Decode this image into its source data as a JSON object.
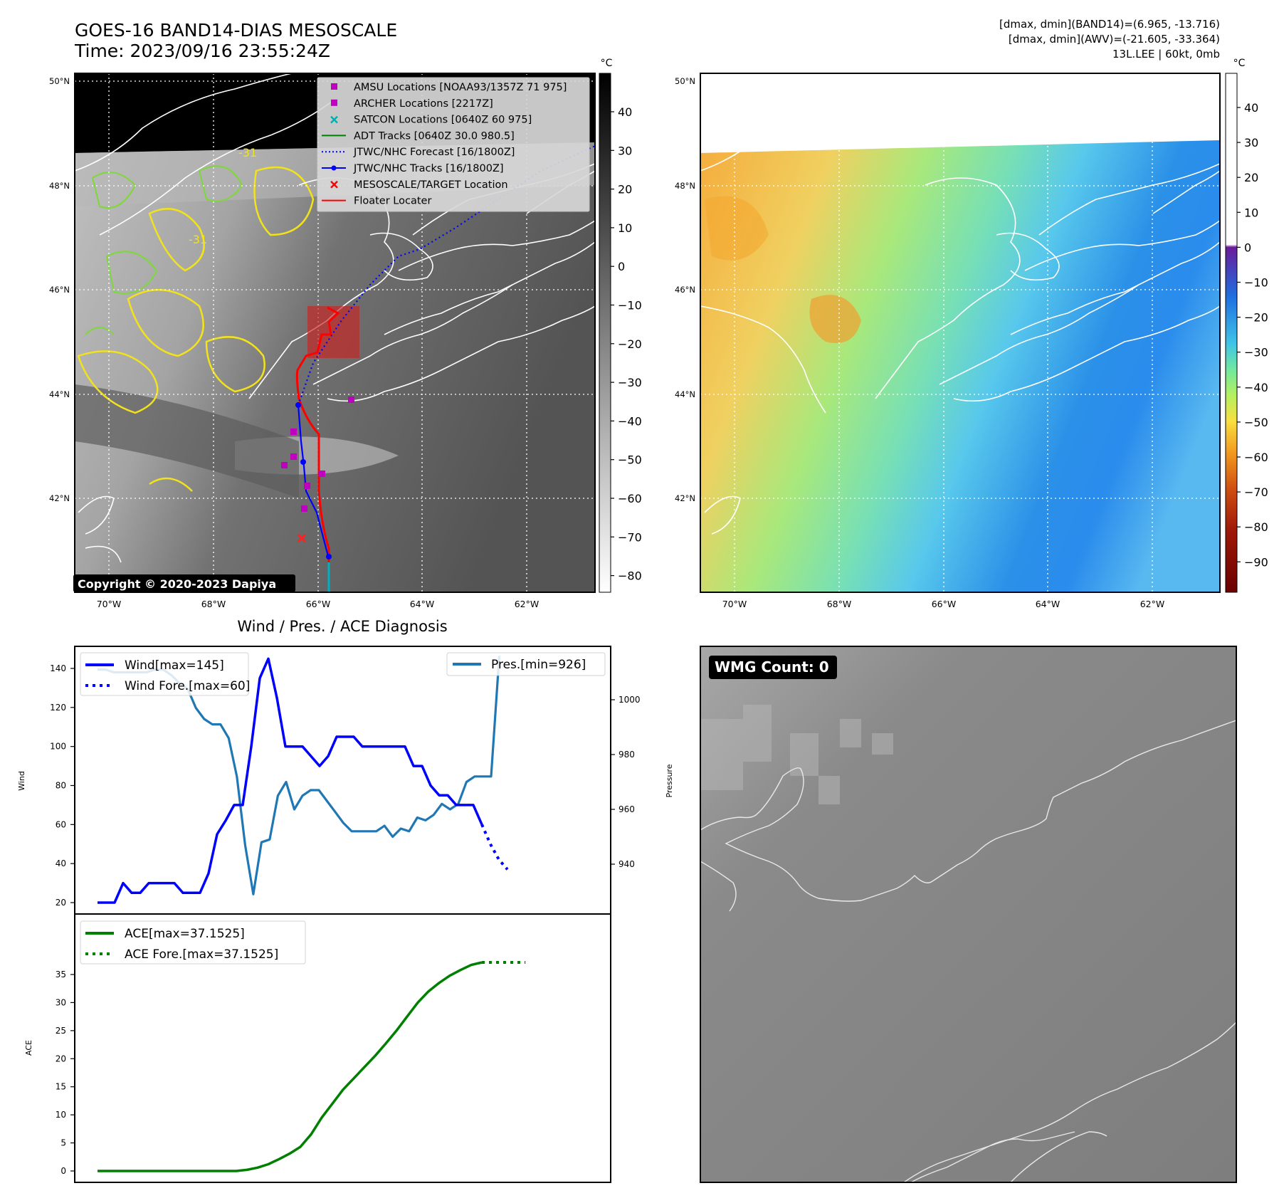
{
  "header": {
    "title": "GOES-16 BAND14-DIAS MESOSCALE",
    "time": "Time: 2023/09/16 23:55:24Z",
    "info_line1": "[dmax, dmin](BAND14)=(6.965, -13.716)",
    "info_line2": "[dmax, dmin](AWV)=(-21.605, -33.364)",
    "info_line3": "13L.LEE | 60kt, 0mb"
  },
  "maps": {
    "lon_ticks": [
      "70°W",
      "68°W",
      "66°W",
      "64°W",
      "62°W"
    ],
    "lat_ticks": [
      "50°N",
      "48°N",
      "46°N",
      "44°N",
      "42°N"
    ],
    "contour_label": "-31",
    "copyright": "Copyright © 2020-2023 Dapiya"
  },
  "legend": {
    "items": [
      {
        "label": "AMSU Locations [NOAA93/1357Z 71 975]",
        "color": "#c000c0",
        "marker": "square"
      },
      {
        "label": "ARCHER Locations [2217Z]",
        "color": "#c000c0",
        "marker": "square"
      },
      {
        "label": "SATCON Locations [0640Z 60 975]",
        "color": "#00b0b0",
        "marker": "x"
      },
      {
        "label": "ADT Tracks [0640Z 30.0 980.5]",
        "color": "#008000",
        "marker": "line"
      },
      {
        "label": "JTWC/NHC Forecast [16/1800Z]",
        "color": "#0000ff",
        "marker": "dotted"
      },
      {
        "label": "JTWC/NHC Tracks [16/1800Z]",
        "color": "#0000ff",
        "marker": "line-dot"
      },
      {
        "label": "MESOSCALE/TARGET Location",
        "color": "#ff0000",
        "marker": "x"
      },
      {
        "label": "Floater Locater",
        "color": "#ff0000",
        "marker": "line"
      }
    ]
  },
  "colorbars": {
    "left": {
      "unit": "°C",
      "ticks": [
        "40",
        "30",
        "20",
        "10",
        "0",
        "−10",
        "−20",
        "−30",
        "−40",
        "−50",
        "−60",
        "−70",
        "−80"
      ]
    },
    "right": {
      "unit": "°C",
      "ticks": [
        "40",
        "30",
        "20",
        "10",
        "0",
        "−10",
        "−20",
        "−30",
        "−40",
        "−50",
        "−60",
        "−70",
        "−80",
        "−90"
      ]
    }
  },
  "diag": {
    "title": "Wind / Pres. / ACE Diagnosis",
    "wind_ylabel": "Wind",
    "pres_ylabel": "Pressure",
    "ace_ylabel": "ACE",
    "wind_legend": [
      "Wind[max=145]",
      "Wind Fore.[max=60]"
    ],
    "pres_legend": [
      "Pres.[min=926]"
    ],
    "ace_legend": [
      "ACE[max=37.1525]",
      "ACE Fore.[max=37.1525]"
    ],
    "wind_ticks": [
      "140",
      "120",
      "100",
      "80",
      "60",
      "40",
      "20"
    ],
    "pres_ticks": [
      "1000",
      "980",
      "960",
      "940"
    ],
    "ace_ticks": [
      "35",
      "30",
      "25",
      "20",
      "15",
      "10",
      "5",
      "0"
    ]
  },
  "wmg": {
    "label": "WMG Count: 0"
  },
  "colors": {
    "wind": "#0000ff",
    "pressure": "#1f77b4",
    "ace": "#008000",
    "track": "#0000ff",
    "floater": "#ff0000"
  },
  "chart_data": [
    {
      "type": "line",
      "title": "Wind / Pres. / ACE Diagnosis",
      "ylabel": "Wind",
      "ylim": [
        16,
        152
      ],
      "series": [
        {
          "name": "Wind[max=145]",
          "values": [
            20,
            20,
            20,
            30,
            25,
            25,
            30,
            30,
            30,
            30,
            25,
            25,
            25,
            35,
            55,
            62,
            70,
            70,
            100,
            135,
            145,
            125,
            100,
            100,
            100,
            95,
            90,
            95,
            105,
            105,
            105,
            100,
            100,
            100,
            100,
            100,
            100,
            90,
            90,
            80,
            75,
            75,
            70,
            70,
            70,
            60
          ]
        },
        {
          "name": "Wind Fore.[max=60]",
          "values": [
            60,
            50,
            42,
            37
          ]
        }
      ]
    },
    {
      "type": "line",
      "ylabel": "Pressure",
      "ylim": [
        920,
        1018
      ],
      "series": [
        {
          "name": "Pres.[min=926]",
          "values": [
            1011,
            1011,
            1010,
            1010,
            1010,
            1010,
            1010,
            1011,
            1011,
            1009,
            1006,
            1004,
            997,
            993,
            991,
            991,
            986,
            972,
            947,
            929,
            948,
            949,
            965,
            970,
            960,
            965,
            967,
            967,
            963,
            959,
            955,
            952,
            952,
            952,
            952,
            954,
            950,
            953,
            952,
            957,
            956,
            958,
            962,
            960,
            962,
            970,
            972,
            972,
            972,
            1016
          ]
        }
      ]
    },
    {
      "type": "line",
      "ylabel": "ACE",
      "ylim": [
        -1.8,
        38.5
      ],
      "series": [
        {
          "name": "ACE[max=37.1525]",
          "values": [
            0,
            0,
            0,
            0,
            0,
            0,
            0,
            0,
            0,
            0,
            0,
            0,
            0,
            0,
            0.2,
            0.6,
            1.2,
            2.1,
            3.1,
            4.3,
            6.5,
            9.5,
            12,
            14.5,
            16.5,
            18.5,
            20.5,
            22.7,
            25,
            27.5,
            30,
            32,
            33.5,
            34.8,
            35.8,
            36.7,
            37.1525
          ]
        },
        {
          "name": "ACE Fore.[max=37.1525]",
          "values": [
            37.1525,
            37.1525,
            37.1525,
            37.1525
          ]
        }
      ]
    }
  ]
}
